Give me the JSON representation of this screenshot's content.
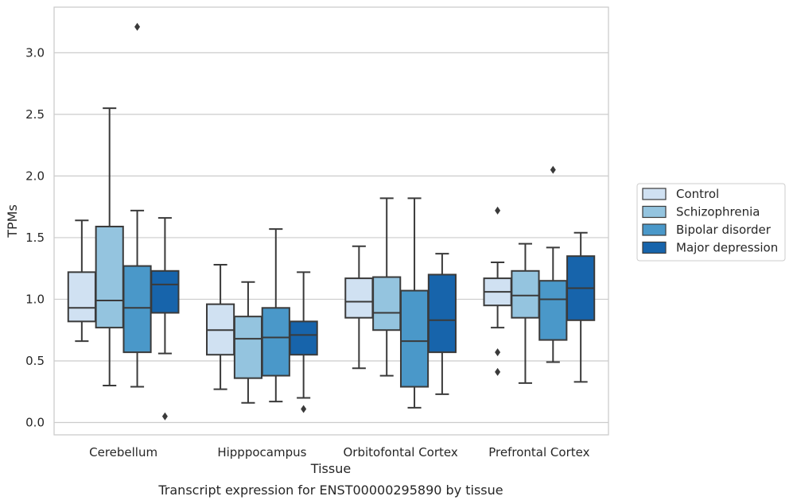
{
  "chart_data": {
    "type": "boxplot",
    "title": "",
    "caption": "Transcript expression for ENST00000295890 by tissue",
    "xlabel": "Tissue",
    "ylabel": "TPMs",
    "ylim": [
      -0.1,
      3.37
    ],
    "yticks": [
      0.0,
      0.5,
      1.0,
      1.5,
      2.0,
      2.5,
      3.0
    ],
    "ytick_labels": [
      "0.0",
      "0.5",
      "1.0",
      "1.5",
      "2.0",
      "2.5",
      "3.0"
    ],
    "grid": "horizontal",
    "legend_position": "right",
    "categories": [
      "Cerebellum",
      "Hipppocampus",
      "Orbitofontal Cortex",
      "Prefrontal Cortex"
    ],
    "series": [
      {
        "name": "Control",
        "color": "#d0e1f2",
        "boxes": [
          {
            "whisker_low": 0.66,
            "q1": 0.82,
            "median": 0.93,
            "q3": 1.22,
            "whisker_high": 1.64,
            "outliers": []
          },
          {
            "whisker_low": 0.27,
            "q1": 0.55,
            "median": 0.75,
            "q3": 0.96,
            "whisker_high": 1.28,
            "outliers": []
          },
          {
            "whisker_low": 0.44,
            "q1": 0.85,
            "median": 0.98,
            "q3": 1.17,
            "whisker_high": 1.43,
            "outliers": []
          },
          {
            "whisker_low": 0.77,
            "q1": 0.95,
            "median": 1.06,
            "q3": 1.17,
            "whisker_high": 1.3,
            "outliers": [
              1.72,
              0.57,
              0.41
            ]
          }
        ]
      },
      {
        "name": "Schizophrenia",
        "color": "#94c4df",
        "boxes": [
          {
            "whisker_low": 0.3,
            "q1": 0.77,
            "median": 0.99,
            "q3": 1.59,
            "whisker_high": 2.55,
            "outliers": []
          },
          {
            "whisker_low": 0.16,
            "q1": 0.36,
            "median": 0.68,
            "q3": 0.86,
            "whisker_high": 1.14,
            "outliers": []
          },
          {
            "whisker_low": 0.38,
            "q1": 0.75,
            "median": 0.89,
            "q3": 1.18,
            "whisker_high": 1.82,
            "outliers": []
          },
          {
            "whisker_low": 0.32,
            "q1": 0.85,
            "median": 1.03,
            "q3": 1.23,
            "whisker_high": 1.45,
            "outliers": []
          }
        ]
      },
      {
        "name": "Bipolar disorder",
        "color": "#4a98c9",
        "boxes": [
          {
            "whisker_low": 0.29,
            "q1": 0.57,
            "median": 0.93,
            "q3": 1.27,
            "whisker_high": 1.72,
            "outliers": [
              3.21
            ]
          },
          {
            "whisker_low": 0.17,
            "q1": 0.38,
            "median": 0.69,
            "q3": 0.93,
            "whisker_high": 1.57,
            "outliers": []
          },
          {
            "whisker_low": 0.12,
            "q1": 0.29,
            "median": 0.66,
            "q3": 1.07,
            "whisker_high": 1.82,
            "outliers": []
          },
          {
            "whisker_low": 0.49,
            "q1": 0.67,
            "median": 1.0,
            "q3": 1.15,
            "whisker_high": 1.42,
            "outliers": [
              2.05
            ]
          }
        ]
      },
      {
        "name": "Major depression",
        "color": "#1764ab",
        "boxes": [
          {
            "whisker_low": 0.56,
            "q1": 0.89,
            "median": 1.12,
            "q3": 1.23,
            "whisker_high": 1.66,
            "outliers": [
              0.05
            ]
          },
          {
            "whisker_low": 0.2,
            "q1": 0.55,
            "median": 0.71,
            "q3": 0.82,
            "whisker_high": 1.22,
            "outliers": [
              0.11
            ]
          },
          {
            "whisker_low": 0.23,
            "q1": 0.57,
            "median": 0.83,
            "q3": 1.2,
            "whisker_high": 1.37,
            "outliers": []
          },
          {
            "whisker_low": 0.33,
            "q1": 0.83,
            "median": 1.09,
            "q3": 1.35,
            "whisker_high": 1.54,
            "outliers": []
          }
        ]
      }
    ]
  },
  "colors": {
    "grid": "#cccccc",
    "frame": "#cccccc",
    "lines": "#3a3a3a",
    "text": "#262626"
  }
}
